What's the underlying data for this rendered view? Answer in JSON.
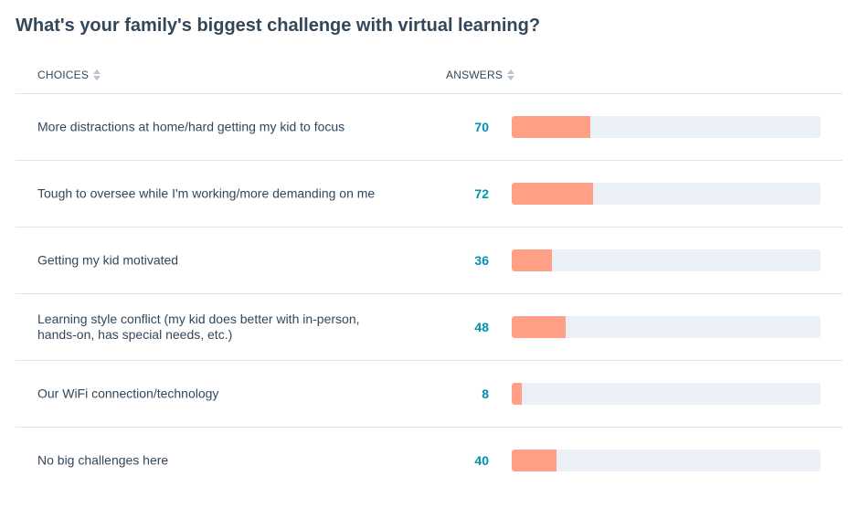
{
  "title": "What's your family's biggest challenge with virtual learning?",
  "columns": {
    "choices": "CHOICES",
    "answers": "ANSWERS"
  },
  "colors": {
    "bar_fill": "#ff9f86",
    "bar_track": "#eaf0f6",
    "answer_text": "#0091ae"
  },
  "chart_data": {
    "type": "bar",
    "orientation": "horizontal",
    "title": "What's your family's biggest challenge with virtual learning?",
    "categories": [
      "More distractions at home/hard getting my kid to focus",
      "Tough to oversee while I'm working/more demanding on me",
      "Getting my kid motivated",
      "Learning style conflict (my kid does better with in-person, hands-on, has special needs, etc.)",
      "Our WiFi connection/technology",
      "No big challenges here"
    ],
    "values": [
      70,
      72,
      36,
      48,
      8,
      40
    ],
    "grid": false,
    "legend": "none"
  },
  "rows": [
    {
      "choice": "More distractions at home/hard getting my kid to focus",
      "answer": "70",
      "share": 0.2549
    },
    {
      "choice": "Tough to oversee while I'm working/more demanding on me",
      "answer": "72",
      "share": 0.2627
    },
    {
      "choice": "Getting my kid motivated",
      "answer": "36",
      "share": 0.1294
    },
    {
      "choice": "Learning style conflict (my kid does better with in-person, hands-on, has special needs, etc.)",
      "answer": "48",
      "share": 0.1745
    },
    {
      "choice": "Our WiFi connection/technology",
      "answer": "8",
      "share": 0.0314
    },
    {
      "choice": "No big challenges here",
      "answer": "40",
      "share": 0.1451
    }
  ]
}
